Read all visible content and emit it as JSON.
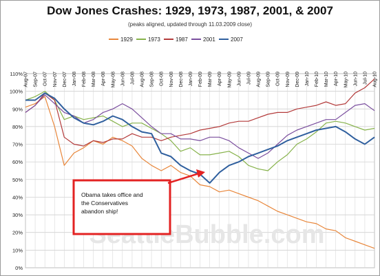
{
  "chart_data": {
    "type": "line",
    "title": "Dow Jones Crashes: 1929, 1973, 1987, 2001, & 2007",
    "subtitle": "(peaks aligned, updated through 11.03.2009 close)",
    "xlabel": "",
    "ylabel": "",
    "ylim": [
      0,
      110
    ],
    "y_ticks": [
      0,
      10,
      20,
      30,
      40,
      50,
      60,
      70,
      80,
      90,
      100,
      110
    ],
    "y_tick_suffix": "%",
    "grid": true,
    "legend_position": "top",
    "x": [
      "Aug-07",
      "Sep-07",
      "Oct-07",
      "Nov-07",
      "Dec-07",
      "Jan-08",
      "Feb-08",
      "Mar-08",
      "Apr-08",
      "May-08",
      "Jun-08",
      "Jul-08",
      "Aug-08",
      "Sep-08",
      "Oct-08",
      "Nov-08",
      "Dec-08",
      "Jan-09",
      "Feb-09",
      "Mar-09",
      "Apr-09",
      "May-09",
      "Jun-09",
      "Jul-09",
      "Aug-09",
      "Sep-09",
      "Oct-09",
      "Nov-09",
      "Dec-09",
      "Jan-10",
      "Feb-10",
      "Mar-10",
      "Apr-10",
      "May-10",
      "Jun-10",
      "Jul-10",
      "Aug-10"
    ],
    "series": [
      {
        "name": "1929",
        "color": "#e8863a",
        "values": [
          91,
          93,
          97,
          80,
          58,
          65,
          68,
          72,
          70,
          74,
          72,
          69,
          62,
          58,
          55,
          58,
          54,
          52,
          47,
          46,
          43,
          44,
          42,
          40,
          38,
          35,
          32,
          30,
          28,
          26,
          25,
          22,
          21,
          17,
          15,
          13,
          11
        ]
      },
      {
        "name": "1973",
        "color": "#86b24a",
        "values": [
          95,
          97,
          100,
          95,
          84,
          86,
          84,
          85,
          86,
          83,
          80,
          82,
          82,
          79,
          76,
          72,
          66,
          68,
          64,
          64,
          65,
          66,
          63,
          58,
          56,
          55,
          60,
          64,
          70,
          73,
          77,
          82,
          83,
          82,
          80,
          78,
          79
        ]
      },
      {
        "name": "1987",
        "color": "#b33a3a",
        "values": [
          88,
          92,
          99,
          95,
          74,
          70,
          69,
          72,
          71,
          73,
          73,
          76,
          74,
          74,
          72,
          74,
          75,
          76,
          78,
          79,
          80,
          82,
          83,
          83,
          85,
          87,
          88,
          88,
          90,
          91,
          92,
          94,
          92,
          93,
          99,
          102,
          107
        ]
      },
      {
        "name": "2001",
        "color": "#7a4e9e",
        "values": [
          88,
          92,
          98,
          93,
          88,
          86,
          82,
          84,
          88,
          90,
          93,
          90,
          85,
          80,
          76,
          76,
          73,
          73,
          72,
          74,
          74,
          72,
          68,
          65,
          62,
          65,
          70,
          75,
          78,
          80,
          82,
          84,
          84,
          88,
          92,
          93,
          89
        ]
      },
      {
        "name": "2007",
        "color": "#2f5f9e",
        "values": [
          95,
          95,
          99,
          96,
          90,
          85,
          82,
          81,
          83,
          86,
          84,
          80,
          77,
          76,
          65,
          63,
          58,
          55,
          53,
          48,
          54,
          58,
          60,
          63,
          65,
          67,
          69,
          72,
          74,
          76,
          78,
          79,
          80,
          77,
          73,
          70,
          74
        ]
      }
    ],
    "annotation": "Obama takes office and the Conservatives abandon ship!",
    "watermark": "SeattleBubble.com"
  }
}
